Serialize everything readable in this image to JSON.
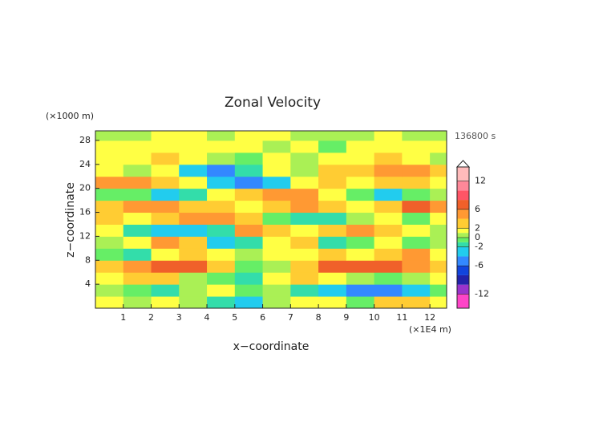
{
  "chart_data": {
    "type": "heatmap",
    "title": "Zonal Velocity",
    "y_unit": "(×1000 m)",
    "x_unit": "(×1E4 m)",
    "time_label": "136800 s",
    "xlabel": "x−coordinate",
    "ylabel": "z−coordinate",
    "xlim": [
      0,
      12.6
    ],
    "ylim": [
      0,
      29.6
    ],
    "xticks": [
      1,
      2,
      3,
      4,
      5,
      6,
      7,
      8,
      9,
      10,
      11,
      12
    ],
    "yticks": [
      4,
      8,
      12,
      16,
      20,
      24,
      28
    ],
    "x": [
      0.5,
      1.5,
      2.5,
      3.5,
      4.5,
      5.5,
      6.5,
      7.5,
      8.5,
      9.5,
      10.5,
      11.5,
      12.5
    ],
    "y": [
      1,
      3,
      5,
      7,
      9,
      11,
      13,
      15,
      17,
      19,
      21,
      23,
      25,
      27,
      29
    ],
    "z": [
      [
        1,
        0.5,
        1.5,
        0,
        -2,
        -4,
        0,
        1.5,
        1,
        -1,
        2,
        3,
        1
      ],
      [
        0,
        -1,
        -1.5,
        0,
        1,
        -1,
        0,
        -2,
        -4,
        -5,
        -5,
        -3,
        -1
      ],
      [
        1.5,
        3,
        2,
        0.5,
        -1,
        -2,
        1,
        2,
        1.5,
        0,
        -1,
        0.5,
        1
      ],
      [
        2,
        5,
        6,
        6,
        3,
        -0.5,
        0,
        3,
        6,
        7,
        6,
        4,
        2
      ],
      [
        -1,
        -2,
        1,
        2,
        1,
        0.5,
        1,
        1.5,
        2,
        1,
        3,
        4,
        1
      ],
      [
        0.5,
        1,
        4,
        2,
        -4,
        -2,
        1,
        2,
        -2,
        -1,
        1,
        -1,
        0
      ],
      [
        1,
        -2,
        -3,
        -3,
        -2,
        4,
        3,
        1,
        2,
        4,
        2,
        1,
        0
      ],
      [
        2,
        1,
        3,
        5,
        5,
        2,
        -1,
        -2,
        -2,
        0,
        1,
        -1,
        1
      ],
      [
        3,
        4,
        4,
        3,
        2,
        1,
        3,
        5,
        2,
        1,
        3,
        6,
        4
      ],
      [
        -1,
        -1,
        -4,
        -2,
        1,
        3,
        5,
        4,
        1,
        -1,
        -3,
        -1,
        0
      ],
      [
        4,
        5,
        3,
        1,
        -3,
        -5,
        -4,
        1,
        2,
        1,
        2,
        3,
        1
      ],
      [
        1,
        0,
        1,
        -4,
        -6,
        -2,
        1,
        0,
        2,
        2,
        4,
        5,
        3
      ],
      [
        1,
        1.5,
        2,
        1,
        0,
        -1,
        1,
        0.5,
        1,
        1,
        2,
        1,
        0.5
      ],
      [
        1,
        1.5,
        1.5,
        1,
        1,
        1.5,
        0.5,
        1,
        -0.5,
        1,
        1,
        1,
        1
      ],
      [
        0.5,
        0.5,
        1,
        1,
        0.5,
        1,
        1,
        0.5,
        0.5,
        0.5,
        1,
        0.5,
        0.5
      ]
    ],
    "colorbar": {
      "lim": [
        -15,
        15
      ],
      "ticks": [
        -12,
        -6,
        -2,
        0,
        2,
        6,
        12
      ],
      "levels": [
        -15,
        -12,
        -10,
        -8,
        -6,
        -4,
        -2,
        -1,
        0,
        1,
        2,
        4,
        6,
        8,
        10,
        12,
        15
      ],
      "colors": [
        "#ff44c8",
        "#9933cc",
        "#2222aa",
        "#1144dd",
        "#3388ff",
        "#22ccee",
        "#33ddaa",
        "#66ee66",
        "#aaf055",
        "#ffff44",
        "#ffcc33",
        "#ff9933",
        "#f0602a",
        "#ff5566",
        "#ff8899",
        "#ffbbbb"
      ]
    }
  }
}
